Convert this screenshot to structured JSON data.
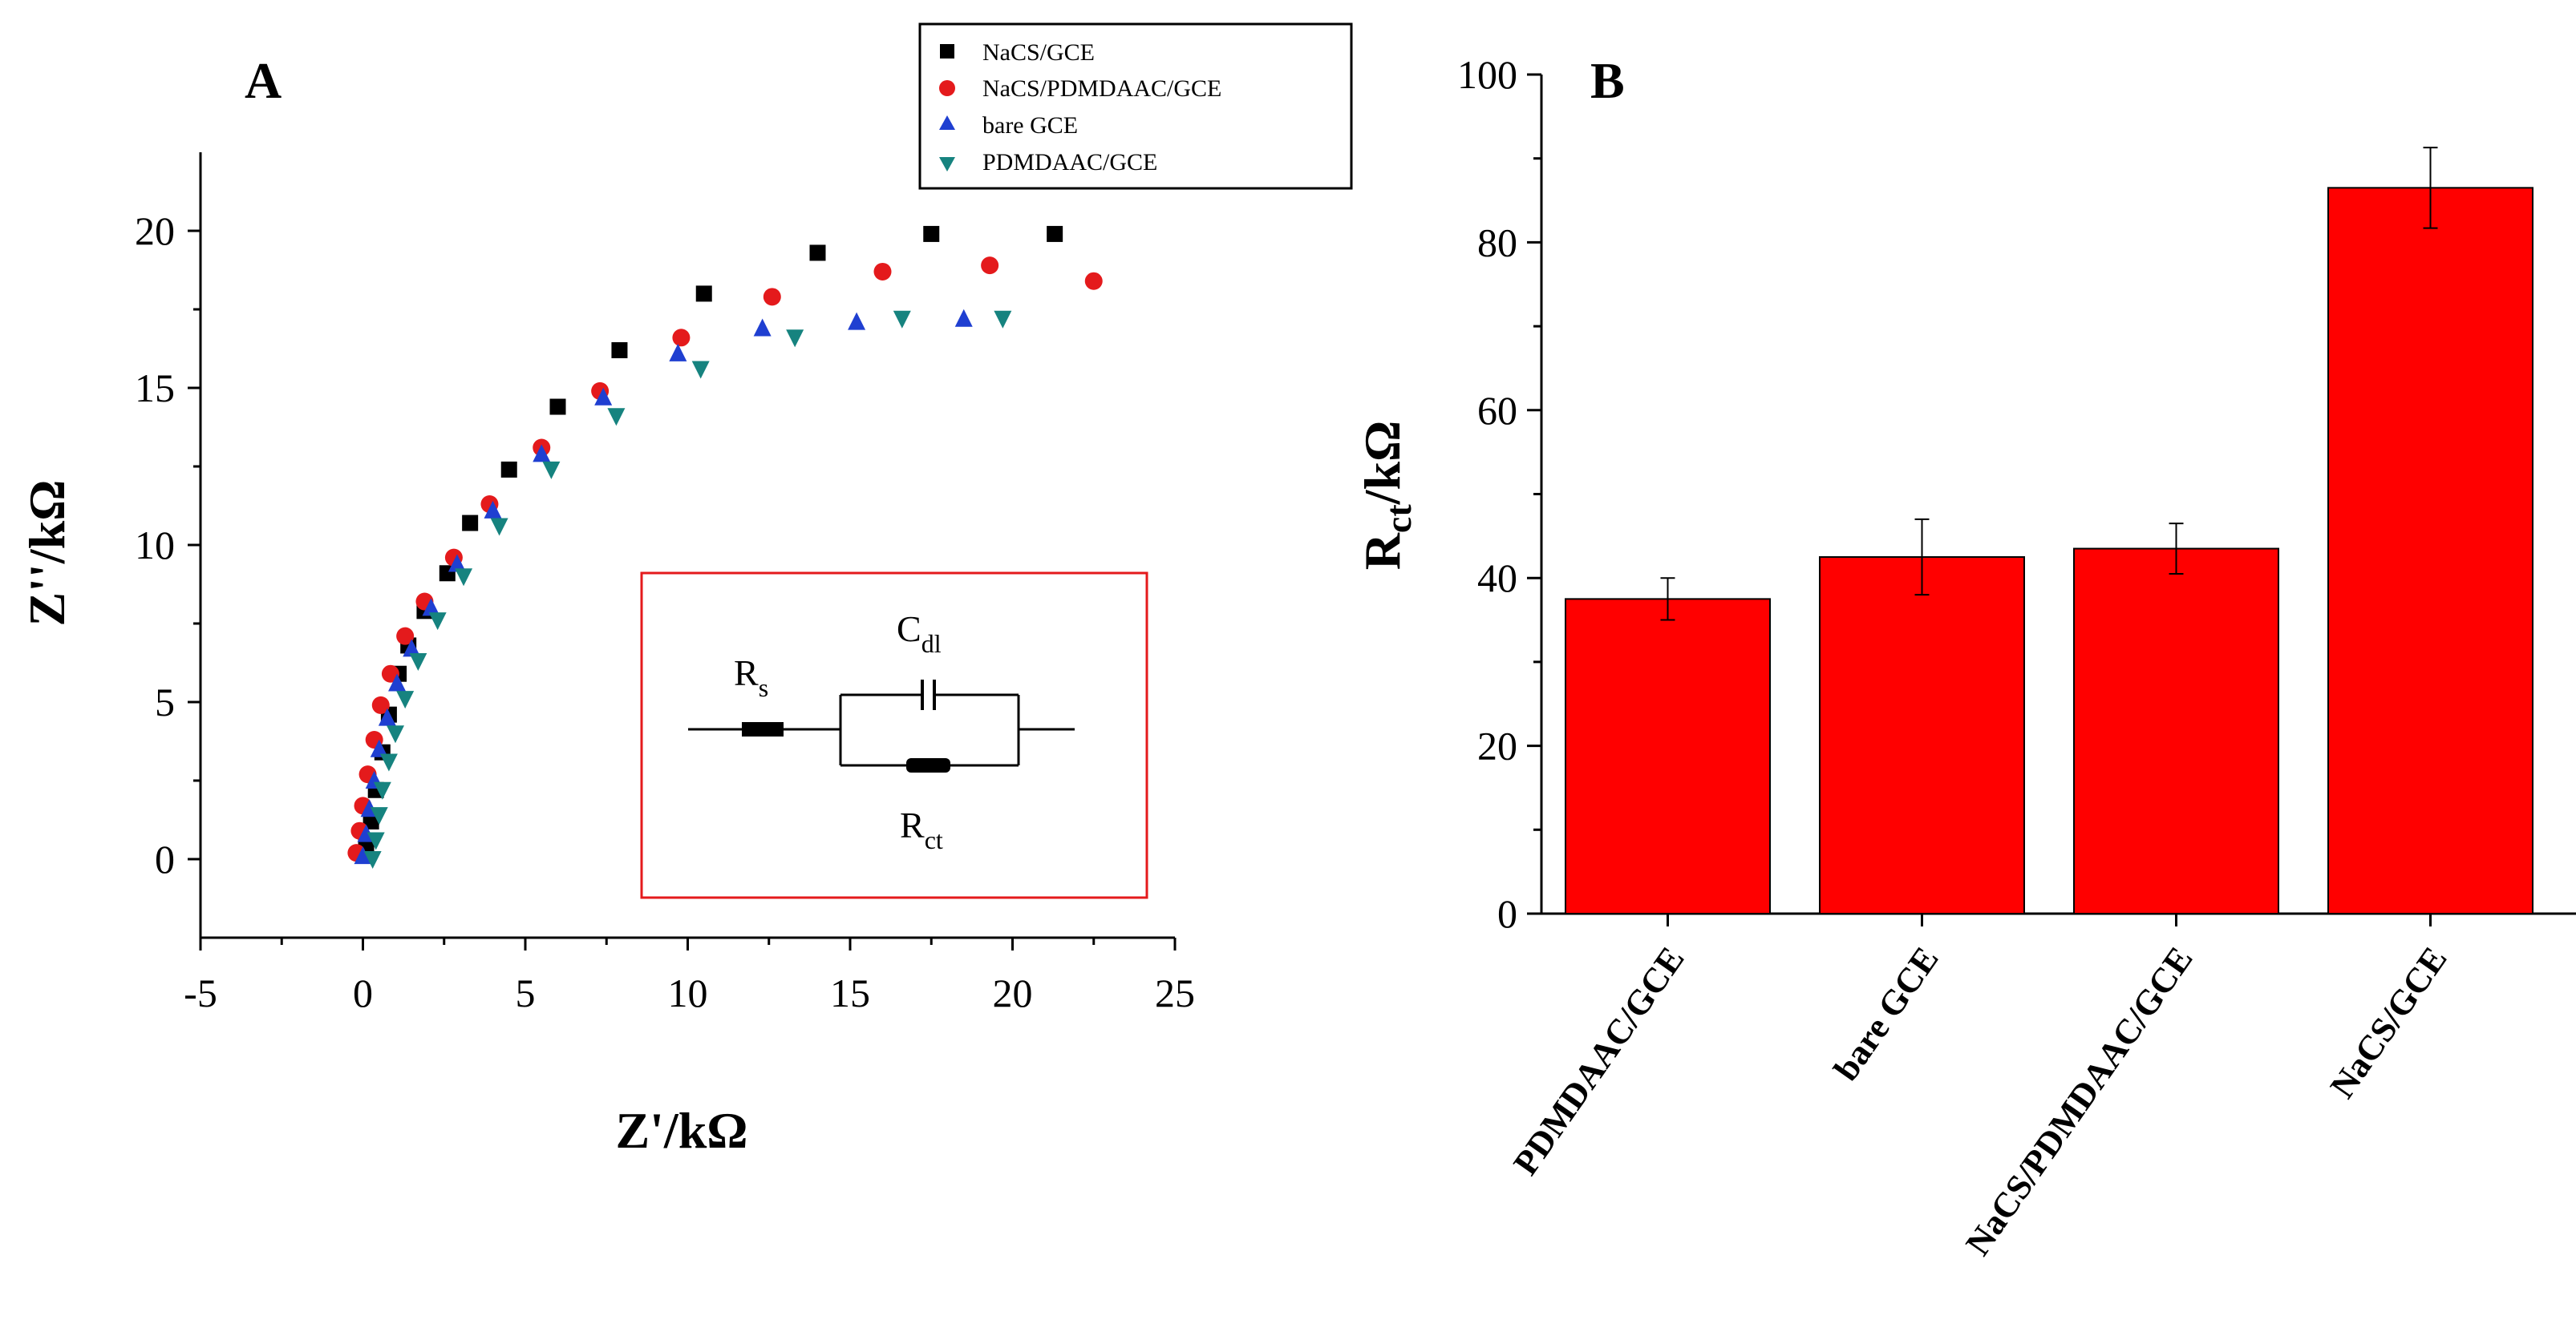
{
  "chart_data": [
    {
      "panel": "A",
      "type": "scatter",
      "xlabel": "Z'/kΩ",
      "ylabel": "Z''/kΩ",
      "xlim": [
        -5,
        25
      ],
      "ylim": [
        -2.5,
        22.5
      ],
      "xticks": [
        "-5",
        "0",
        "5",
        "10",
        "15",
        "20",
        "25"
      ],
      "yticks": [
        "0",
        "5",
        "10",
        "15",
        "20"
      ],
      "legend_position": "top-right",
      "series": [
        {
          "name": "NaCS/GCE",
          "marker": "square",
          "color": "#000000",
          "x": [
            0.1,
            0.25,
            0.4,
            0.6,
            0.8,
            1.1,
            1.4,
            1.9,
            2.6,
            3.3,
            4.5,
            6.0,
            7.9,
            10.5,
            14.0,
            17.5,
            21.3
          ],
          "y": [
            0.4,
            1.2,
            2.2,
            3.4,
            4.6,
            5.9,
            6.8,
            7.9,
            9.1,
            10.7,
            12.4,
            14.4,
            16.2,
            18.0,
            19.3,
            19.9,
            19.9
          ]
        },
        {
          "name": "NaCS/PDMDAAC/GCE",
          "marker": "circle",
          "color": "#e41a1c",
          "x": [
            -0.2,
            -0.1,
            0.0,
            0.15,
            0.35,
            0.55,
            0.85,
            1.3,
            1.9,
            2.8,
            3.9,
            5.5,
            7.3,
            9.8,
            12.6,
            16.0,
            19.3,
            22.5
          ],
          "y": [
            0.2,
            0.9,
            1.7,
            2.7,
            3.8,
            4.9,
            5.9,
            7.1,
            8.2,
            9.6,
            11.3,
            13.1,
            14.9,
            16.6,
            17.9,
            18.7,
            18.9,
            18.4
          ]
        },
        {
          "name": "bare GCE",
          "marker": "triangle-up",
          "color": "#1f3fd1",
          "x": [
            0.0,
            0.1,
            0.2,
            0.35,
            0.5,
            0.75,
            1.05,
            1.5,
            2.1,
            2.9,
            4.0,
            5.5,
            7.4,
            9.7,
            12.3,
            15.2,
            18.5
          ],
          "y": [
            0.1,
            0.8,
            1.6,
            2.5,
            3.5,
            4.5,
            5.6,
            6.7,
            8.0,
            9.4,
            11.1,
            12.9,
            14.7,
            16.1,
            16.9,
            17.1,
            17.2
          ]
        },
        {
          "name": "PDMDAAC/GCE",
          "marker": "triangle-down",
          "color": "#16837f",
          "x": [
            0.3,
            0.4,
            0.5,
            0.6,
            0.8,
            1.0,
            1.3,
            1.7,
            2.3,
            3.1,
            4.2,
            5.8,
            7.8,
            10.4,
            13.3,
            16.6,
            19.7
          ],
          "y": [
            0.0,
            0.6,
            1.4,
            2.2,
            3.1,
            4.0,
            5.1,
            6.3,
            7.6,
            9.0,
            10.6,
            12.4,
            14.1,
            15.6,
            16.6,
            17.2,
            17.2
          ]
        }
      ],
      "inset": {
        "labels": {
          "rs": "R",
          "rs_sub": "s",
          "cdl": "C",
          "cdl_sub": "dl",
          "rct": "R",
          "rct_sub": "ct"
        },
        "border_color": "#e41a1c"
      }
    },
    {
      "panel": "B",
      "type": "bar",
      "ylabel": "R",
      "ylabel_sub": "ct",
      "ylabel_suffix": "/kΩ",
      "ylim": [
        0,
        100
      ],
      "yticks": [
        "0",
        "20",
        "40",
        "60",
        "80",
        "100"
      ],
      "categories": [
        "PDMDAAC/GCE",
        "bare GCE",
        "NaCS/PDMDAAC/GCE",
        "NaCS/GCE"
      ],
      "values": [
        37.5,
        42.5,
        43.5,
        86.5
      ],
      "errors": [
        2.5,
        4.5,
        3.0,
        4.8
      ],
      "bar_color": "#ff0000"
    }
  ]
}
